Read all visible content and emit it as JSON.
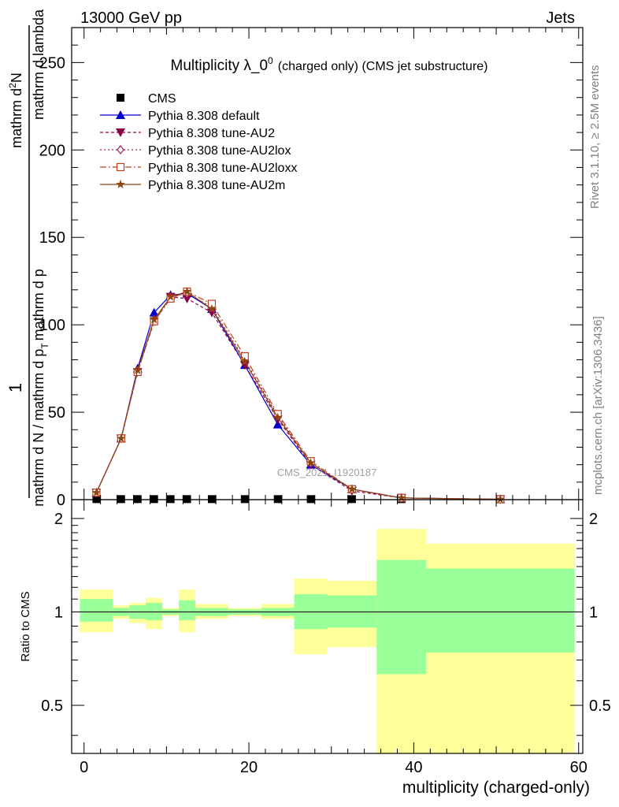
{
  "header": {
    "left": "13000 GeV pp",
    "right": "Jets"
  },
  "side_labels": {
    "rivet": "Rivet 3.1.10, ≥ 2.5M events",
    "mcplots": "mcplots.cern.ch [arXiv:1306.3436]"
  },
  "chart_data": {
    "type": "line",
    "title_main": "Multiplicity λ_0",
    "title_sup": "0",
    "title_suffix": "(charged only) (CMS jet substructure)",
    "watermark": "CMS_2021_I1920187",
    "xlabel": "multiplicity (charged-only)",
    "ylabel_numerator": "1",
    "ylabel_denominator": "mathrm d N / mathrm d p",
    "ylabel_denominator_sub": "T",
    "ylabel_denominator_tail": "mathrm d p",
    "ylabel_numerator2": "mathrm d",
    "ylabel_numerator2_sup": "2",
    "ylabel_numerator2_tail": "N",
    "ylabel_lambda": "mathrm d lambda",
    "ratio_ylabel": "Ratio to CMS",
    "xlim": [
      -1.5,
      60.5
    ],
    "ylim": [
      0,
      270
    ],
    "ratio_ylim": [
      0.35,
      2.3
    ],
    "ratio_scale": "log",
    "x_ticks": [
      "0",
      "20",
      "40",
      "60"
    ],
    "y_ticks": [
      "0",
      "50",
      "100",
      "150",
      "200",
      "250"
    ],
    "ratio_ticks": [
      "0.5",
      "1",
      "2"
    ],
    "legend_position": "top-left",
    "x": [
      1.5,
      4.5,
      6.5,
      8.5,
      10.5,
      12.5,
      15.5,
      19.5,
      23.5,
      27.5,
      32.5,
      38.5,
      50.5
    ],
    "series": [
      {
        "name": "CMS",
        "color": "#000000",
        "marker": "square",
        "values": [
          0.3,
          0.3,
          0.3,
          0.3,
          0.3,
          0.3,
          0.3,
          0.3,
          0.3,
          0.3,
          0.3,
          0.3,
          0.3
        ]
      },
      {
        "name": "Pythia 8.308 default",
        "color": "#0000cc",
        "marker": "triangle-up",
        "dash": "",
        "values": [
          4,
          35,
          75,
          107,
          117,
          118,
          109,
          77,
          43,
          20,
          6,
          1,
          0.2
        ]
      },
      {
        "name": "Pythia 8.308 tune-AU2",
        "color": "#8b0046",
        "marker": "triangle-down",
        "dash": "4,3",
        "values": [
          4,
          35,
          73,
          102,
          116,
          115,
          107,
          77,
          46,
          20,
          5,
          1,
          0.2
        ]
      },
      {
        "name": "Pythia 8.308 tune-AU2lox",
        "color": "#a0205a",
        "marker": "diamond",
        "dash": "2,3",
        "values": [
          4,
          35,
          74,
          103,
          116,
          118,
          110,
          80,
          48,
          21,
          6,
          1,
          0.2
        ]
      },
      {
        "name": "Pythia 8.308 tune-AU2loxx",
        "color": "#c04020",
        "marker": "square-open",
        "dash": "8,3,2,3",
        "values": [
          4,
          35,
          73,
          102,
          115,
          119,
          112,
          82,
          49,
          22,
          6,
          1,
          0.2
        ]
      },
      {
        "name": "Pythia 8.308 tune-AU2m",
        "color": "#8b4513",
        "marker": "star",
        "dash": "",
        "values": [
          4,
          35,
          74,
          103,
          116,
          119,
          109,
          79,
          47,
          21,
          6,
          1,
          0.2
        ]
      }
    ],
    "ratio_bands": [
      {
        "x0": -0.5,
        "x1": 3.5,
        "g": [
          0.93,
          1.1
        ],
        "y": [
          0.86,
          1.18
        ]
      },
      {
        "x0": 3.5,
        "x1": 5.5,
        "g": [
          0.97,
          1.03
        ],
        "y": [
          0.95,
          1.05
        ]
      },
      {
        "x0": 5.5,
        "x1": 7.5,
        "g": [
          0.95,
          1.05
        ],
        "y": [
          0.92,
          1.07
        ]
      },
      {
        "x0": 7.5,
        "x1": 9.5,
        "g": [
          0.94,
          1.07
        ],
        "y": [
          0.88,
          1.11
        ]
      },
      {
        "x0": 9.5,
        "x1": 11.5,
        "g": [
          0.98,
          1.02
        ],
        "y": [
          0.97,
          1.03
        ]
      },
      {
        "x0": 11.5,
        "x1": 13.5,
        "g": [
          0.94,
          1.09
        ],
        "y": [
          0.86,
          1.18
        ]
      },
      {
        "x0": 13.5,
        "x1": 17.5,
        "g": [
          0.97,
          1.03
        ],
        "y": [
          0.95,
          1.06
        ]
      },
      {
        "x0": 17.5,
        "x1": 21.5,
        "g": [
          0.98,
          1.02
        ],
        "y": [
          0.97,
          1.03
        ]
      },
      {
        "x0": 21.5,
        "x1": 25.5,
        "g": [
          0.97,
          1.03
        ],
        "y": [
          0.95,
          1.06
        ]
      },
      {
        "x0": 25.5,
        "x1": 29.5,
        "g": [
          0.88,
          1.14
        ],
        "y": [
          0.73,
          1.28
        ]
      },
      {
        "x0": 29.5,
        "x1": 35.5,
        "g": [
          0.89,
          1.13
        ],
        "y": [
          0.77,
          1.26
        ]
      },
      {
        "x0": 35.5,
        "x1": 41.5,
        "g": [
          0.63,
          1.47
        ],
        "y": [
          0.35,
          1.85
        ]
      },
      {
        "x0": 41.5,
        "x1": 59.5,
        "g": [
          0.74,
          1.38
        ],
        "y": [
          0.35,
          1.66
        ]
      }
    ]
  }
}
